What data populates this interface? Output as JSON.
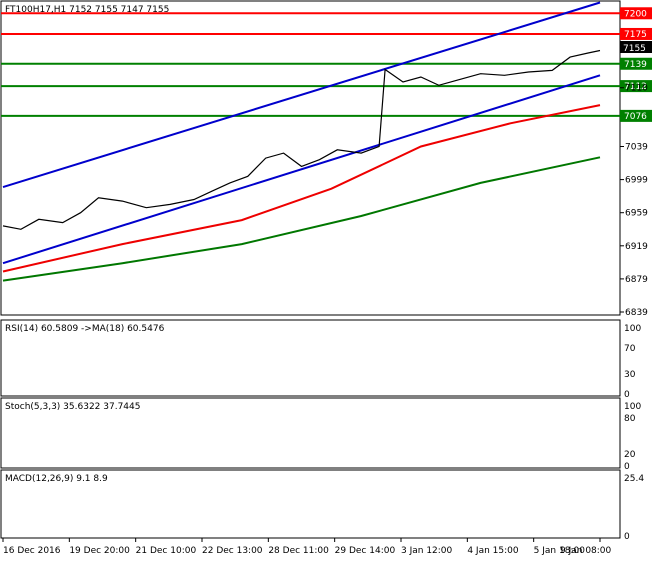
{
  "chart_data": [
    {
      "type": "candlestick",
      "title": "FT100H17,H1  7152 7155 7147 7155",
      "ohlc": {
        "open": 7152,
        "high": 7155,
        "low": 7147,
        "close": 7155
      },
      "current_price": 7155,
      "ylim": [
        6839,
        7210
      ],
      "y_ticks": [
        7110,
        7039,
        6999,
        6959,
        6919,
        6879,
        6839
      ],
      "x_ticks": [
        "16 Dec 2016",
        "19 Dec 20:00",
        "21 Dec 10:00",
        "22 Dec 13:00",
        "28 Dec 11:00",
        "29 Dec 14:00",
        "3 Jan 12:00",
        "4 Jan 15:00",
        "5 Jan 18:00",
        "9 Jan 08:00"
      ],
      "levels": [
        {
          "value": 7200,
          "label": "7200",
          "color": "#ff0000"
        },
        {
          "value": 7175,
          "label": "7175",
          "color": "#ff0000"
        },
        {
          "value": 7139,
          "label": "7139",
          "color": "#008000"
        },
        {
          "value": 7112,
          "label": "7112",
          "color": "#008000"
        },
        {
          "value": 7076,
          "label": "7076",
          "color": "#008000"
        }
      ],
      "channel": {
        "color": "#0000cc",
        "upper": [
          [
            0,
            6990
          ],
          [
            1,
            7213
          ]
        ],
        "lower": [
          [
            0,
            6898
          ],
          [
            1,
            7125
          ]
        ]
      },
      "moving_averages": [
        {
          "color": "#ee0000",
          "points": [
            [
              0,
              6888
            ],
            [
              0.2,
              6921
            ],
            [
              0.4,
              6950
            ],
            [
              0.55,
              6988
            ],
            [
              0.7,
              7039
            ],
            [
              0.85,
              7067
            ],
            [
              1,
              7089
            ]
          ]
        },
        {
          "color": "#007700",
          "points": [
            [
              0,
              6877
            ],
            [
              0.2,
              6898
            ],
            [
              0.4,
              6921
            ],
            [
              0.6,
              6955
            ],
            [
              0.8,
              6995
            ],
            [
              1,
              7026
            ]
          ]
        }
      ],
      "price_path": [
        [
          0,
          6943
        ],
        [
          0.03,
          6939
        ],
        [
          0.06,
          6951
        ],
        [
          0.1,
          6947
        ],
        [
          0.13,
          6959
        ],
        [
          0.16,
          6977
        ],
        [
          0.2,
          6973
        ],
        [
          0.24,
          6965
        ],
        [
          0.28,
          6969
        ],
        [
          0.32,
          6975
        ],
        [
          0.35,
          6985
        ],
        [
          0.38,
          6995
        ],
        [
          0.41,
          7003
        ],
        [
          0.44,
          7025
        ],
        [
          0.47,
          7031
        ],
        [
          0.5,
          7015
        ],
        [
          0.53,
          7023
        ],
        [
          0.56,
          7035
        ],
        [
          0.6,
          7031
        ],
        [
          0.63,
          7039
        ],
        [
          0.64,
          7132
        ],
        [
          0.67,
          7117
        ],
        [
          0.7,
          7123
        ],
        [
          0.73,
          7113
        ],
        [
          0.76,
          7119
        ],
        [
          0.8,
          7127
        ],
        [
          0.84,
          7125
        ],
        [
          0.88,
          7129
        ],
        [
          0.92,
          7131
        ],
        [
          0.95,
          7147
        ],
        [
          0.98,
          7152
        ],
        [
          1,
          7155
        ]
      ]
    },
    {
      "type": "line",
      "title": "RSI(14) 60.5809  ->MA(18) 60.5476",
      "ylim": [
        0,
        100
      ],
      "y_ticks": [
        100,
        70,
        30,
        0
      ],
      "rsi": 60.5809,
      "ma": 60.5476
    },
    {
      "type": "line",
      "title": "Stoch(5,3,3) 35.6322 37.7445",
      "ylim": [
        0,
        100
      ],
      "y_ticks": [
        100,
        80,
        20,
        0
      ],
      "k": 35.6322,
      "d": 37.7445
    },
    {
      "type": "bar",
      "title": "MACD(12,26,9) 9.1 8.9",
      "y_ticks": [
        25.4,
        0
      ],
      "macd": 9.1,
      "signal": 8.9
    }
  ]
}
